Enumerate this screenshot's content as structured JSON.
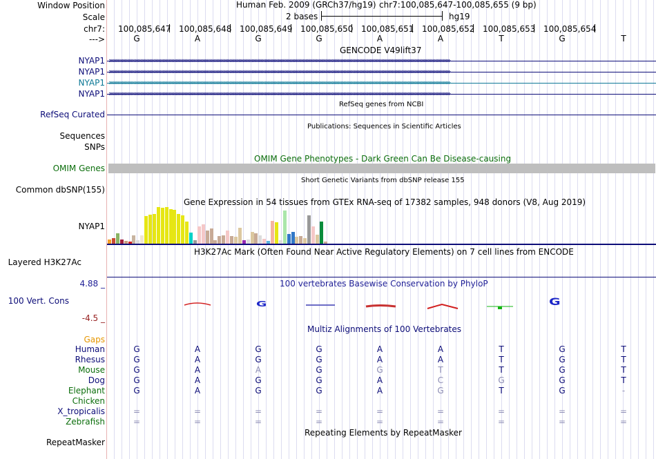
{
  "header": {
    "window_position_label": "Window Position",
    "scale_label": "Scale",
    "chr_label": "chr7:",
    "strand_label": "--->",
    "assembly_text": "Human Feb. 2009 (GRCh37/hg19)",
    "coordinates_text": "chr7:100,085,647-100,085,655 (9 bp)",
    "scale_text": "2 bases",
    "scale_db": "hg19",
    "positions": [
      "100,085,647",
      "100,085,648",
      "100,085,649",
      "100,085,650",
      "100,085,651",
      "100,085,652",
      "100,085,653",
      "100,085,654"
    ],
    "bases": [
      "G",
      "A",
      "G",
      "G",
      "A",
      "A",
      "T",
      "G",
      "T"
    ]
  },
  "tracks": {
    "gencode": {
      "title": "GENCODE V49lift37",
      "genes": [
        "NYAP1",
        "NYAP1",
        "NYAP1",
        "NYAP1"
      ],
      "colors": [
        "#0c0c78",
        "#0c0c78",
        "#0c7896",
        "#0c0c78"
      ]
    },
    "refseq": {
      "label": "RefSeq Curated",
      "title": "RefSeq genes from NCBI"
    },
    "publications": {
      "title": "Publications: Sequences in Scientific Articles"
    },
    "sequences_label": "Sequences",
    "snps_label": "SNPs",
    "omim": {
      "label": "OMIM Genes",
      "title": "OMIM Gene Phenotypes - Dark Green Can Be Disease-causing"
    },
    "dbsnp": {
      "label": "Common dbSNP(155)",
      "title": "Short Genetic Variants from dbSNP release 155"
    },
    "gtex": {
      "label": "NYAP1",
      "title": "Gene Expression in 54 tissues from GTEx RNA-seq of 17382 samples, 948 donors (V8, Aug 2019)"
    },
    "h3k27ac": {
      "label": "Layered H3K27Ac",
      "title": "H3K27Ac Mark (Often Found Near Active Regulatory Elements) on 7 cell lines from ENCODE"
    },
    "conservation": {
      "label": "100 Vert. Cons",
      "max": "4.88 _",
      "min": "-4.5 _",
      "title": "100 vertebrates Basewise Conservation by PhyloP"
    },
    "multiz": {
      "title": "Multiz Alignments of 100 Vertebrates",
      "gaps_label": "Gaps",
      "species": [
        {
          "name": "Human",
          "color": "#0c0c78",
          "bases": [
            "G",
            "A",
            "G",
            "G",
            "A",
            "A",
            "T",
            "G",
            "T"
          ]
        },
        {
          "name": "Rhesus",
          "color": "#0c0c78",
          "bases": [
            "G",
            "A",
            "G",
            "G",
            "A",
            "A",
            "T",
            "G",
            "T"
          ]
        },
        {
          "name": "Mouse",
          "color": "#0c6e0c",
          "bases": [
            "G",
            "A",
            "A",
            "G",
            "G",
            "T",
            "T",
            "G",
            "T"
          ]
        },
        {
          "name": "Dog",
          "color": "#0c0c78",
          "bases": [
            "G",
            "A",
            "G",
            "G",
            "A",
            "C",
            "G",
            "G",
            "T"
          ]
        },
        {
          "name": "Elephant",
          "color": "#0c6e0c",
          "bases": [
            "G",
            "A",
            "G",
            "G",
            "A",
            "G",
            "T",
            "G",
            "-"
          ]
        },
        {
          "name": "Chicken",
          "color": "#0c6e0c",
          "bases": [
            "",
            "",
            "",
            "",
            "",
            "",
            "",
            "",
            ""
          ]
        },
        {
          "name": "X_tropicalis",
          "color": "#0c0c78",
          "bases": [
            "=",
            "=",
            "=",
            "=",
            "=",
            "=",
            "=",
            "=",
            "="
          ]
        },
        {
          "name": "Zebrafish",
          "color": "#0c6e0c",
          "bases": [
            "=",
            "=",
            "=",
            "=",
            "=",
            "=",
            "=",
            "=",
            "="
          ]
        }
      ]
    },
    "repeatmasker": {
      "label": "RepeatMasker",
      "title": "Repeating Elements by RepeatMasker"
    }
  },
  "chart_data": {
    "type": "bar",
    "title": "Gene Expression in 54 tissues from GTEx RNA-seq of 17382 samples, 948 donors (V8, Aug 2019)",
    "values": [
      12,
      15,
      28,
      12,
      8,
      5,
      22,
      10,
      22,
      75,
      80,
      82,
      100,
      98,
      100,
      95,
      92,
      82,
      78,
      60,
      30,
      10,
      48,
      52,
      36,
      42,
      10,
      20,
      22,
      36,
      20,
      18,
      44,
      10,
      12,
      32,
      28,
      22,
      14,
      8,
      62,
      58,
      10,
      90,
      26,
      32,
      18,
      20,
      16,
      78,
      48,
      24,
      60,
      6
    ],
    "colors": [
      "#f5a028",
      "#c84b32",
      "#8ab464",
      "#a01e3c",
      "#c8a080",
      "#d21e1e",
      "#c8b4a0",
      "#dcdcdc",
      "#f0e6d2",
      "#e6e614",
      "#e6e614",
      "#e6e614",
      "#e6e614",
      "#e6e614",
      "#e6e614",
      "#e6e614",
      "#e6e614",
      "#e6e614",
      "#e6e614",
      "#e6e614",
      "#00d2c8",
      "#999999",
      "#f5c8c8",
      "#f5c8c8",
      "#c8aa96",
      "#c8aa96",
      "#c8aa96",
      "#c8aa96",
      "#c8aa96",
      "#f5c8c8",
      "#c8aa96",
      "#dcc8a0",
      "#dcc8a0",
      "#9628b4",
      "#dcdcdc",
      "#dcc8a0",
      "#c8aa96",
      "#dcdcdc",
      "#f5c8c8",
      "#5ab4dc",
      "#f5b4a0",
      "#e6e614",
      "#dcdcdc",
      "#aae6aa",
      "#3278c8",
      "#3278c8",
      "#dcc8a0",
      "#c8aa96",
      "#dcc8a0",
      "#999999",
      "#f5c8c8",
      "#dcc8a0",
      "#0a8c3c",
      "#c8aa96"
    ]
  },
  "style": {
    "navy": "#0c0c78",
    "green": "#0c6e0c",
    "orange": "#e69600",
    "omim_gray": "#bebebe",
    "cons_max_color": "#1e1e96",
    "cons_min_color": "#961e1e"
  }
}
